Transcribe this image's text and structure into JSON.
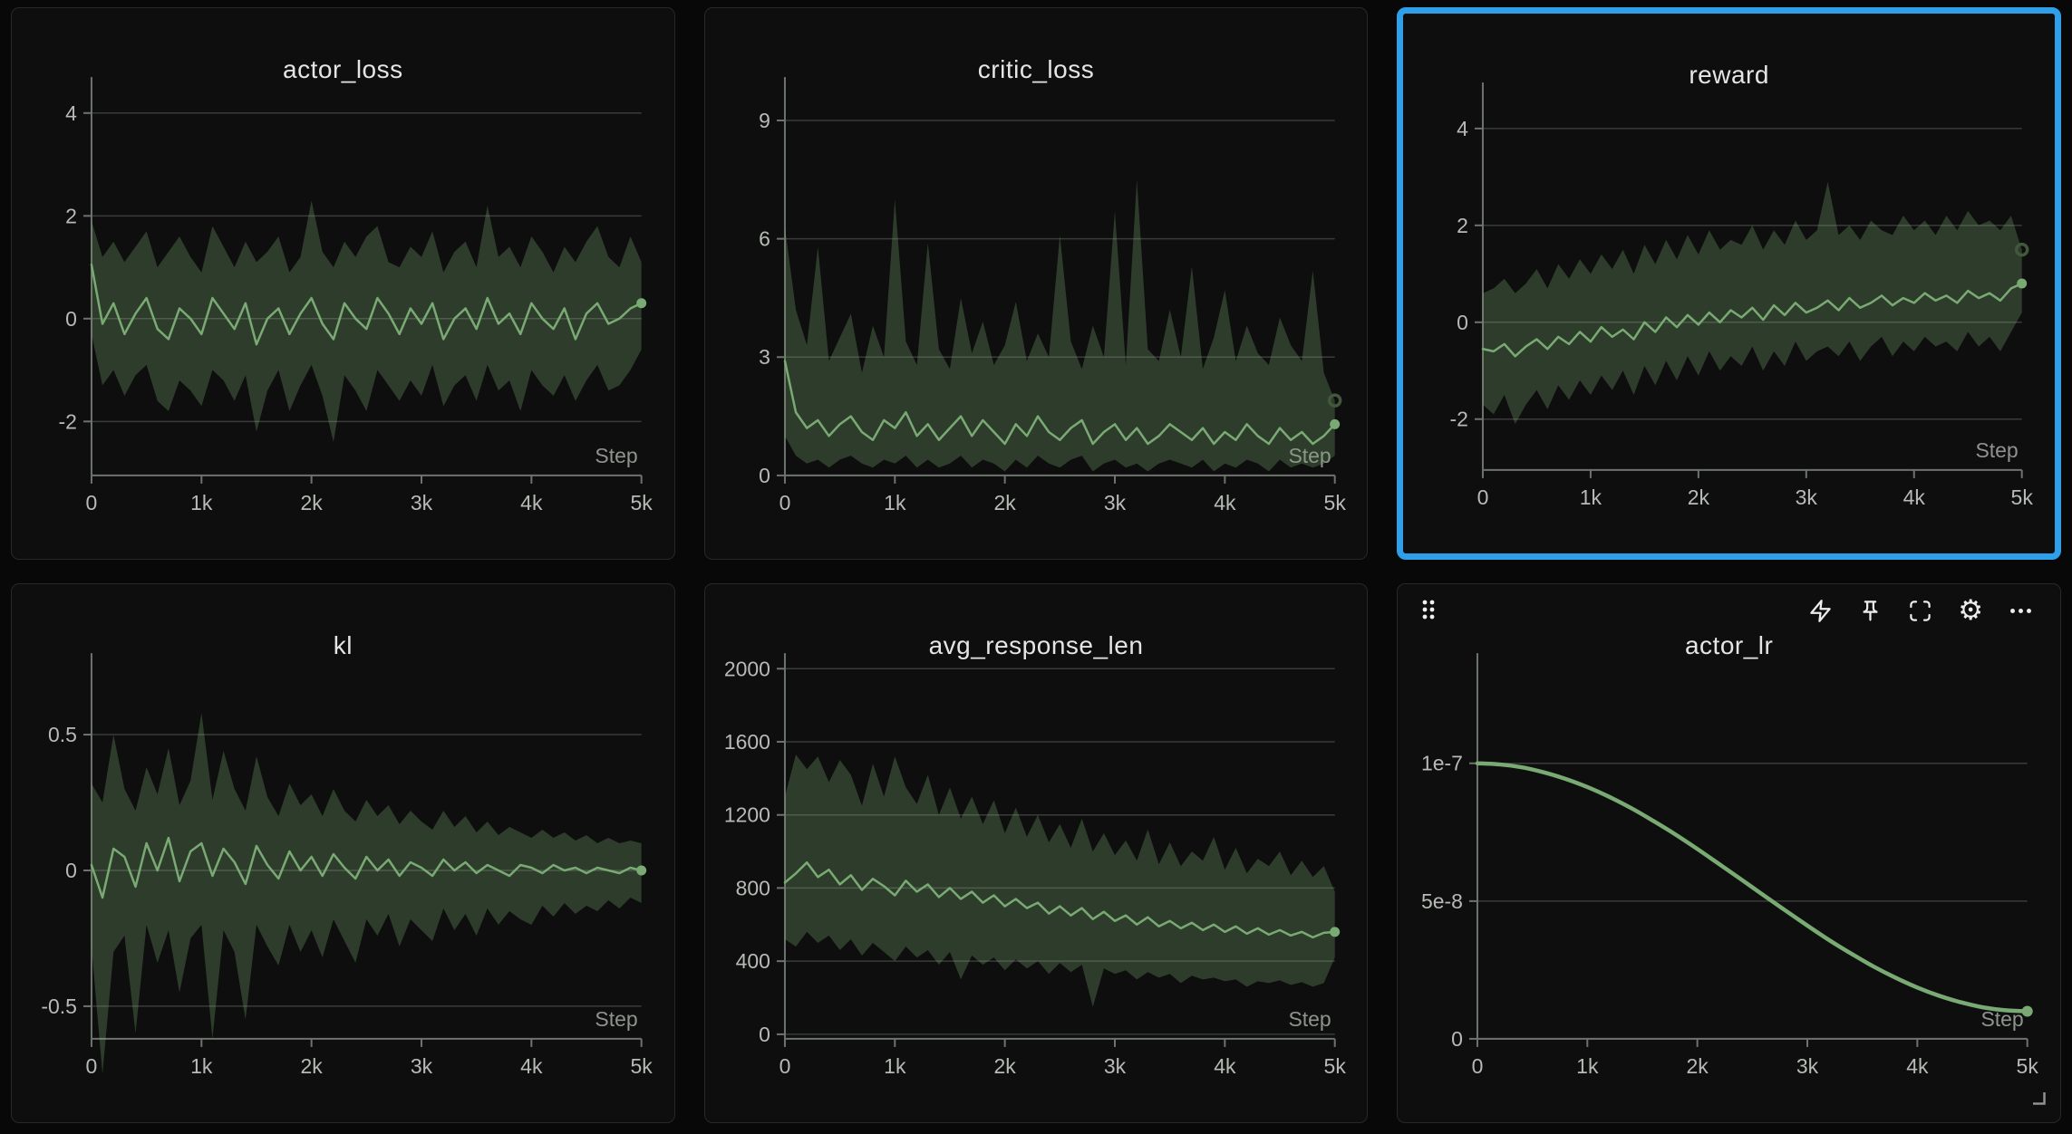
{
  "ui": {
    "selected_panel": "reward",
    "accent_blue": "#2e9fe8",
    "series_color": "#7aaa73",
    "band_color": "rgba(122,170,115,0.30)",
    "panel_background": "#0d0e0d",
    "page_background": "#070807",
    "toolbar_icons": [
      "lightning-icon",
      "pin-icon",
      "fullscreen-icon",
      "gear-icon",
      "overflow-icon"
    ],
    "drag_handle_dots": 6,
    "resize_handle_position": "bottom-right"
  },
  "chart_data": [
    {
      "id": "actor_loss",
      "type": "line",
      "title": "actor_loss",
      "xlabel": "Step",
      "x_start": 0,
      "x_step": 100,
      "x_max": 5000,
      "x_ticks": [
        "0",
        "1k",
        "2k",
        "3k",
        "4k",
        "5k"
      ],
      "ylim": [
        -3.05,
        4.7
      ],
      "y_ticks": [
        [
          -2,
          "-2"
        ],
        [
          0,
          "0"
        ],
        [
          2,
          "2"
        ],
        [
          4,
          "4"
        ]
      ],
      "band_end_ring": false,
      "series": [
        {
          "name": "mean",
          "values": [
            1.05,
            -0.1,
            0.3,
            -0.3,
            0.1,
            0.4,
            -0.2,
            -0.4,
            0.2,
            0.0,
            -0.3,
            0.4,
            0.1,
            -0.2,
            0.3,
            -0.5,
            0.0,
            0.2,
            -0.3,
            0.1,
            0.4,
            -0.1,
            -0.4,
            0.3,
            0.0,
            -0.2,
            0.4,
            0.1,
            -0.3,
            0.2,
            -0.1,
            0.3,
            -0.4,
            0.0,
            0.2,
            -0.2,
            0.4,
            -0.1,
            0.1,
            -0.3,
            0.3,
            0.0,
            -0.2,
            0.2,
            -0.4,
            0.1,
            0.3,
            -0.1,
            0.0,
            0.2,
            0.3
          ]
        },
        {
          "name": "band_hi",
          "values": [
            1.9,
            1.2,
            1.5,
            1.1,
            1.4,
            1.7,
            1.0,
            1.3,
            1.6,
            1.2,
            0.9,
            1.8,
            1.4,
            1.0,
            1.5,
            1.1,
            1.3,
            1.6,
            0.9,
            1.2,
            2.3,
            1.3,
            1.0,
            1.5,
            1.2,
            1.6,
            1.8,
            1.1,
            1.0,
            1.4,
            1.2,
            1.7,
            0.9,
            1.3,
            1.5,
            1.0,
            2.2,
            1.2,
            1.4,
            1.0,
            1.6,
            1.3,
            0.9,
            1.4,
            1.1,
            1.5,
            1.8,
            1.2,
            1.0,
            1.6,
            1.1
          ]
        },
        {
          "name": "band_lo",
          "values": [
            -0.3,
            -1.3,
            -1.0,
            -1.5,
            -1.1,
            -0.9,
            -1.6,
            -1.8,
            -1.2,
            -1.4,
            -1.7,
            -1.0,
            -1.2,
            -1.6,
            -1.1,
            -2.2,
            -1.4,
            -1.0,
            -1.8,
            -1.3,
            -0.9,
            -1.5,
            -2.4,
            -1.1,
            -1.4,
            -1.8,
            -1.0,
            -1.3,
            -1.6,
            -1.2,
            -1.5,
            -0.9,
            -1.7,
            -1.3,
            -1.1,
            -1.6,
            -0.9,
            -1.4,
            -1.2,
            -1.8,
            -1.0,
            -1.3,
            -1.5,
            -1.1,
            -1.6,
            -1.2,
            -0.9,
            -1.4,
            -1.3,
            -1.0,
            -0.6
          ]
        }
      ]
    },
    {
      "id": "critic_loss",
      "type": "line",
      "title": "critic_loss",
      "xlabel": "Step",
      "x_start": 0,
      "x_step": 100,
      "x_max": 5000,
      "x_ticks": [
        "0",
        "1k",
        "2k",
        "3k",
        "4k",
        "5k"
      ],
      "ylim": [
        0,
        10.1
      ],
      "y_ticks": [
        [
          0,
          "0"
        ],
        [
          3,
          "3"
        ],
        [
          6,
          "6"
        ],
        [
          9,
          "9"
        ]
      ],
      "band_end_ring": true,
      "series": [
        {
          "name": "mean",
          "values": [
            2.9,
            1.6,
            1.2,
            1.4,
            1.0,
            1.3,
            1.5,
            1.1,
            0.9,
            1.4,
            1.2,
            1.6,
            1.0,
            1.3,
            0.9,
            1.2,
            1.5,
            1.0,
            1.4,
            1.1,
            0.8,
            1.3,
            1.0,
            1.5,
            1.1,
            0.9,
            1.2,
            1.4,
            0.8,
            1.1,
            1.3,
            0.9,
            1.2,
            0.8,
            1.0,
            1.3,
            1.1,
            0.9,
            1.2,
            0.8,
            1.1,
            0.9,
            1.3,
            1.0,
            0.8,
            1.2,
            0.9,
            1.1,
            0.8,
            1.0,
            1.3
          ]
        },
        {
          "name": "band_hi",
          "values": [
            6.3,
            4.2,
            3.3,
            5.8,
            2.9,
            3.5,
            4.1,
            2.6,
            3.8,
            3.0,
            7.0,
            3.4,
            2.8,
            5.9,
            3.2,
            2.7,
            4.5,
            3.1,
            3.9,
            2.8,
            3.3,
            4.4,
            2.9,
            3.6,
            3.0,
            6.1,
            3.4,
            2.7,
            3.8,
            3.0,
            6.7,
            2.8,
            7.5,
            3.2,
            2.9,
            4.2,
            3.0,
            5.3,
            2.7,
            3.5,
            4.7,
            2.9,
            3.8,
            3.1,
            2.8,
            4.0,
            3.3,
            2.9,
            5.2,
            2.6,
            1.9
          ]
        },
        {
          "name": "band_lo",
          "values": [
            1.0,
            0.5,
            0.3,
            0.4,
            0.2,
            0.4,
            0.5,
            0.3,
            0.2,
            0.4,
            0.3,
            0.5,
            0.2,
            0.4,
            0.2,
            0.3,
            0.5,
            0.2,
            0.4,
            0.3,
            0.1,
            0.4,
            0.2,
            0.5,
            0.3,
            0.2,
            0.4,
            0.5,
            0.1,
            0.3,
            0.4,
            0.2,
            0.3,
            0.1,
            0.3,
            0.4,
            0.3,
            0.2,
            0.4,
            0.1,
            0.3,
            0.2,
            0.4,
            0.3,
            0.1,
            0.4,
            0.2,
            0.3,
            0.2,
            0.3,
            0.5
          ]
        }
      ]
    },
    {
      "id": "reward",
      "type": "line",
      "title": "reward",
      "xlabel": "Step",
      "x_start": 0,
      "x_step": 100,
      "x_max": 5000,
      "x_ticks": [
        "0",
        "1k",
        "2k",
        "3k",
        "4k",
        "5k"
      ],
      "ylim": [
        -3.05,
        4.95
      ],
      "y_ticks": [
        [
          -2,
          "-2"
        ],
        [
          0,
          "0"
        ],
        [
          2,
          "2"
        ],
        [
          4,
          "4"
        ]
      ],
      "band_end_ring": true,
      "selected": true,
      "series": [
        {
          "name": "mean",
          "values": [
            -0.55,
            -0.6,
            -0.45,
            -0.7,
            -0.5,
            -0.35,
            -0.55,
            -0.3,
            -0.45,
            -0.2,
            -0.4,
            -0.1,
            -0.3,
            -0.15,
            -0.35,
            0.0,
            -0.2,
            0.1,
            -0.1,
            0.15,
            -0.05,
            0.2,
            0.0,
            0.25,
            0.1,
            0.3,
            0.05,
            0.35,
            0.15,
            0.4,
            0.2,
            0.3,
            0.45,
            0.25,
            0.5,
            0.3,
            0.4,
            0.55,
            0.35,
            0.5,
            0.4,
            0.6,
            0.45,
            0.55,
            0.4,
            0.65,
            0.5,
            0.6,
            0.45,
            0.7,
            0.8
          ]
        },
        {
          "name": "band_hi",
          "values": [
            0.6,
            0.7,
            0.9,
            0.6,
            0.8,
            1.1,
            0.7,
            1.2,
            0.9,
            1.3,
            1.0,
            1.4,
            1.1,
            1.5,
            1.0,
            1.6,
            1.2,
            1.7,
            1.3,
            1.8,
            1.4,
            1.9,
            1.5,
            1.7,
            1.6,
            2.0,
            1.5,
            1.9,
            1.6,
            2.1,
            1.7,
            1.9,
            2.9,
            1.8,
            2.0,
            1.7,
            2.1,
            1.9,
            1.8,
            2.2,
            1.9,
            2.1,
            1.8,
            2.2,
            1.9,
            2.3,
            2.0,
            2.1,
            1.9,
            2.2,
            1.5
          ]
        },
        {
          "name": "band_lo",
          "values": [
            -1.7,
            -1.9,
            -1.5,
            -2.1,
            -1.7,
            -1.4,
            -1.8,
            -1.3,
            -1.6,
            -1.2,
            -1.5,
            -1.1,
            -1.4,
            -1.0,
            -1.5,
            -0.9,
            -1.3,
            -0.8,
            -1.2,
            -0.7,
            -1.1,
            -0.6,
            -1.0,
            -0.7,
            -0.9,
            -0.5,
            -1.0,
            -0.6,
            -0.9,
            -0.4,
            -0.8,
            -0.6,
            -0.5,
            -0.7,
            -0.4,
            -0.8,
            -0.5,
            -0.3,
            -0.7,
            -0.4,
            -0.6,
            -0.3,
            -0.5,
            -0.4,
            -0.6,
            -0.2,
            -0.5,
            -0.3,
            -0.6,
            -0.2,
            0.2
          ]
        }
      ]
    },
    {
      "id": "kl",
      "type": "line",
      "title": "kl",
      "xlabel": "Step",
      "x_start": 0,
      "x_step": 100,
      "x_max": 5000,
      "x_ticks": [
        "0",
        "1k",
        "2k",
        "3k",
        "4k",
        "5k"
      ],
      "ylim": [
        -0.62,
        0.8
      ],
      "y_ticks": [
        [
          -0.5,
          "-0.5"
        ],
        [
          0,
          "0"
        ],
        [
          0.5,
          "0.5"
        ]
      ],
      "band_end_ring": false,
      "series": [
        {
          "name": "mean",
          "values": [
            0.02,
            -0.1,
            0.08,
            0.05,
            -0.06,
            0.1,
            0.0,
            0.12,
            -0.04,
            0.07,
            0.1,
            -0.02,
            0.08,
            0.03,
            -0.05,
            0.09,
            0.02,
            -0.03,
            0.07,
            0.0,
            0.05,
            -0.02,
            0.06,
            0.01,
            -0.03,
            0.05,
            0.0,
            0.04,
            -0.02,
            0.03,
            0.01,
            -0.02,
            0.04,
            0.0,
            0.03,
            -0.01,
            0.02,
            0.0,
            -0.02,
            0.02,
            0.01,
            -0.01,
            0.02,
            0.0,
            0.01,
            -0.01,
            0.01,
            0.0,
            -0.01,
            0.01,
            0.0
          ]
        },
        {
          "name": "band_hi",
          "values": [
            0.32,
            0.25,
            0.5,
            0.3,
            0.22,
            0.38,
            0.28,
            0.45,
            0.24,
            0.33,
            0.58,
            0.26,
            0.44,
            0.3,
            0.22,
            0.42,
            0.27,
            0.2,
            0.32,
            0.24,
            0.28,
            0.2,
            0.3,
            0.22,
            0.18,
            0.26,
            0.2,
            0.24,
            0.17,
            0.22,
            0.18,
            0.15,
            0.22,
            0.16,
            0.2,
            0.14,
            0.18,
            0.13,
            0.16,
            0.14,
            0.12,
            0.15,
            0.12,
            0.14,
            0.11,
            0.13,
            0.1,
            0.12,
            0.1,
            0.11,
            0.1
          ]
        },
        {
          "name": "band_lo",
          "values": [
            -0.28,
            -0.75,
            -0.3,
            -0.24,
            -0.6,
            -0.2,
            -0.34,
            -0.22,
            -0.45,
            -0.25,
            -0.2,
            -0.62,
            -0.22,
            -0.3,
            -0.55,
            -0.2,
            -0.28,
            -0.35,
            -0.2,
            -0.3,
            -0.22,
            -0.32,
            -0.18,
            -0.26,
            -0.34,
            -0.18,
            -0.24,
            -0.16,
            -0.28,
            -0.18,
            -0.22,
            -0.26,
            -0.14,
            -0.22,
            -0.16,
            -0.24,
            -0.14,
            -0.2,
            -0.15,
            -0.18,
            -0.2,
            -0.13,
            -0.17,
            -0.12,
            -0.16,
            -0.13,
            -0.15,
            -0.11,
            -0.14,
            -0.1,
            -0.12
          ]
        }
      ]
    },
    {
      "id": "avg_response_len",
      "type": "line",
      "title": "avg_response_len",
      "xlabel": "Step",
      "x_start": 0,
      "x_step": 100,
      "x_max": 5000,
      "x_ticks": [
        "0",
        "1k",
        "2k",
        "3k",
        "4k",
        "5k"
      ],
      "ylim": [
        -25,
        2085
      ],
      "y_ticks": [
        [
          0,
          "0"
        ],
        [
          400,
          "400"
        ],
        [
          800,
          "800"
        ],
        [
          1200,
          "1200"
        ],
        [
          1600,
          "1600"
        ],
        [
          2000,
          "2000"
        ]
      ],
      "band_end_ring": false,
      "series": [
        {
          "name": "mean",
          "values": [
            830,
            880,
            940,
            860,
            900,
            820,
            870,
            790,
            850,
            810,
            760,
            840,
            780,
            820,
            750,
            800,
            740,
            780,
            720,
            760,
            700,
            740,
            690,
            720,
            660,
            700,
            650,
            690,
            630,
            670,
            620,
            650,
            600,
            640,
            590,
            620,
            580,
            610,
            570,
            600,
            560,
            590,
            550,
            580,
            545,
            570,
            540,
            560,
            530,
            555,
            560
          ]
        },
        {
          "name": "band_hi",
          "values": [
            1300,
            1530,
            1450,
            1520,
            1380,
            1500,
            1420,
            1250,
            1480,
            1300,
            1520,
            1350,
            1260,
            1420,
            1200,
            1350,
            1180,
            1300,
            1150,
            1280,
            1100,
            1240,
            1080,
            1200,
            1050,
            1150,
            1020,
            1180,
            1000,
            1100,
            980,
            1060,
            950,
            1120,
            930,
            1050,
            920,
            1000,
            950,
            1080,
            900,
            1020,
            880,
            960,
            920,
            1000,
            870,
            950,
            860,
            920,
            780
          ]
        },
        {
          "name": "band_lo",
          "values": [
            520,
            480,
            560,
            500,
            540,
            460,
            520,
            430,
            500,
            450,
            400,
            480,
            420,
            460,
            380,
            450,
            300,
            430,
            380,
            420,
            350,
            410,
            360,
            400,
            330,
            390,
            340,
            380,
            150,
            360,
            330,
            350,
            300,
            340,
            310,
            330,
            280,
            320,
            300,
            310,
            290,
            300,
            260,
            290,
            280,
            295,
            270,
            285,
            260,
            280,
            420
          ]
        }
      ]
    },
    {
      "id": "actor_lr",
      "type": "line",
      "title": "actor_lr",
      "xlabel": "Step",
      "x_start": 0,
      "x_step": 200,
      "x_max": 5000,
      "x_ticks": [
        "0",
        "1k",
        "2k",
        "3k",
        "4k",
        "5k"
      ],
      "y_unit": "1e-8",
      "ylim": [
        0,
        14
      ],
      "y_ticks": [
        [
          0,
          "0"
        ],
        [
          5,
          "5e-8"
        ],
        [
          10,
          "1e-7"
        ]
      ],
      "band_end_ring": false,
      "smooth": true,
      "has_toolbar": true,
      "series": [
        {
          "name": "value",
          "values": [
            10,
            9.96,
            9.86,
            9.68,
            9.44,
            9.14,
            8.78,
            8.37,
            7.91,
            7.42,
            6.89,
            6.34,
            5.78,
            5.22,
            4.66,
            4.11,
            3.58,
            3.09,
            2.63,
            2.22,
            1.86,
            1.56,
            1.32,
            1.14,
            1.04,
            1.0
          ]
        }
      ]
    }
  ]
}
